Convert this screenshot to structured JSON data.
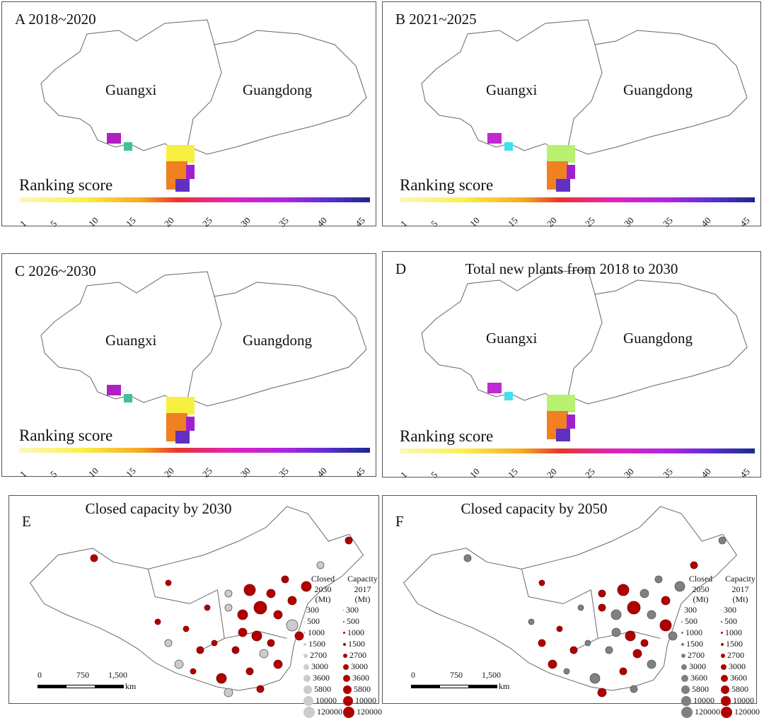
{
  "ranking_panels": [
    {
      "label": "A  2018~2020",
      "title": "",
      "guangxi": "Guangxi",
      "guangdong": "Guangdong",
      "colorbar_label": "Ranking score"
    },
    {
      "label": "B  2021~2025",
      "title": "",
      "guangxi": "Guangxi",
      "guangdong": "Guangdong",
      "colorbar_label": "Ranking score"
    },
    {
      "label": "C  2026~2030",
      "title": "",
      "guangxi": "Guangxi",
      "guangdong": "Guangdong",
      "colorbar_label": "Ranking score"
    },
    {
      "label": "D",
      "title": "Total new plants from 2018 to 2030",
      "guangxi": "Guangxi",
      "guangdong": "Guangdong",
      "colorbar_label": "Ranking score"
    }
  ],
  "colorbar_ticks": [
    "1",
    "5",
    "10",
    "15",
    "20",
    "25",
    "30",
    "35",
    "40",
    "45"
  ],
  "colorbar_colors": [
    "#fbf7c0",
    "#fbf04a",
    "#f5a623",
    "#e8352a",
    "#e023b8",
    "#b125e0",
    "#5a2fd0",
    "#1a2a8a"
  ],
  "capacity_panels": [
    {
      "label": "E",
      "title": "Closed capacity by 2030",
      "closed_header": [
        "Closed",
        "2030",
        "(Mt)"
      ],
      "capacity_header": [
        "Capacity",
        "2017",
        "(Mt)"
      ]
    },
    {
      "label": "F",
      "title": "Closed capacity by 2050",
      "closed_header": [
        "Closed",
        "2050",
        "(Mt)"
      ],
      "capacity_header": [
        "Capacity",
        "2017",
        "(Mt)"
      ]
    }
  ],
  "legend_values": [
    "300",
    "500",
    "1000",
    "1500",
    "2700",
    "3000",
    "3600",
    "5800",
    "10000",
    "120000"
  ],
  "closed_color_E": "#cccccc",
  "closed_color_F": "#808080",
  "capacity_color": "#b00000",
  "scalebar": {
    "zero": "0",
    "mid": "750",
    "max": "1,500",
    "unit": "km"
  }
}
